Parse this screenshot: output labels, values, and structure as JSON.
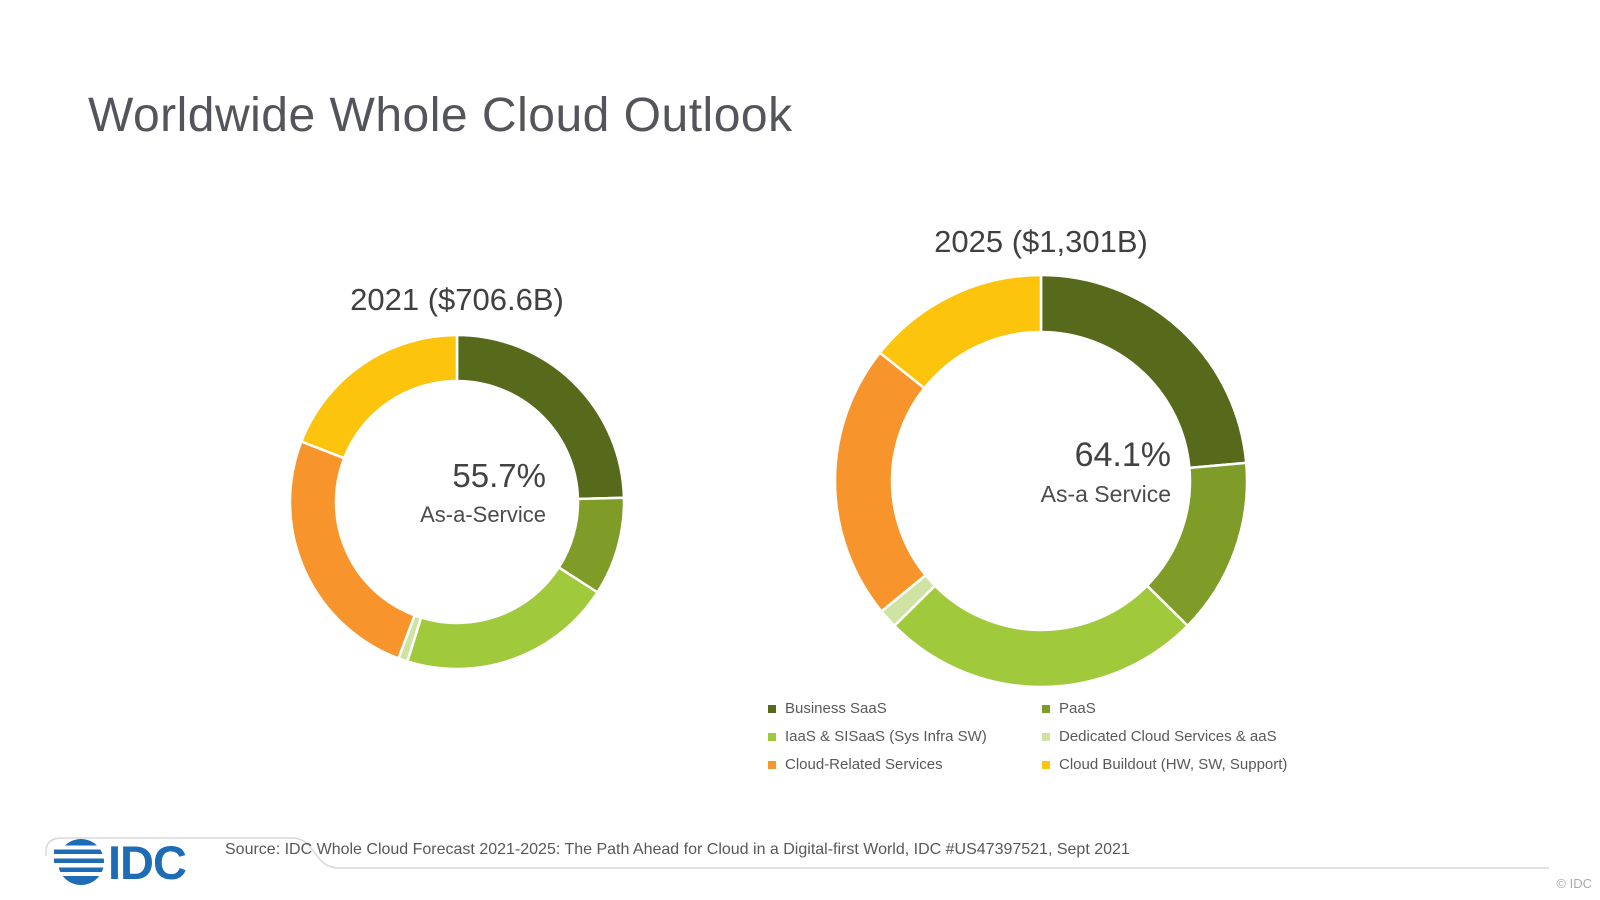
{
  "page": {
    "background": "#ffffff"
  },
  "header": {
    "title": "Worldwide Whole Cloud Outlook"
  },
  "chart_data": [
    {
      "type": "donut",
      "title": "2021 ($706.6B)",
      "total_label": "$706.6B",
      "year": "2021",
      "center": {
        "percent": "55.7%",
        "label": "As-a-Service"
      },
      "categories": [
        "Business SaaS",
        "PaaS",
        "IaaS & SISaaS (Sys Infra SW)",
        "Dedicated Cloud Services & aaS",
        "Cloud-Related Services",
        "Cloud Buildout (HW, SW, Support)"
      ],
      "values": [
        24.6,
        9.5,
        20.7,
        0.9,
        25.2,
        19.1
      ],
      "colors": [
        "#57691b",
        "#7f9b28",
        "#a1c93c",
        "#cfe3a3",
        "#f7952c",
        "#fdc40d"
      ],
      "start_angle": 0,
      "legend_position": "none"
    },
    {
      "type": "donut",
      "title": "2025 ($1,301B)",
      "total_label": "$1,301B",
      "year": "2025",
      "center": {
        "percent": "64.1%",
        "label": "As-a Service"
      },
      "categories": [
        "Business SaaS",
        "PaaS",
        "IaaS & SISaaS (Sys Infra SW)",
        "Dedicated Cloud Services & aaS",
        "Cloud-Related Services",
        "Cloud Buildout (HW, SW, Support)"
      ],
      "values": [
        23.6,
        13.8,
        25.2,
        1.5,
        21.6,
        14.3
      ],
      "colors": [
        "#57691b",
        "#7f9b28",
        "#a1c93c",
        "#cfe3a3",
        "#f7952c",
        "#fdc40d"
      ],
      "start_angle": 0,
      "legend_position": "below"
    }
  ],
  "legend": {
    "items": [
      {
        "label": "Business SaaS",
        "color": "#57691b"
      },
      {
        "label": "PaaS",
        "color": "#7f9b28"
      },
      {
        "label": "IaaS & SISaaS (Sys Infra SW)",
        "color": "#a1c93c"
      },
      {
        "label": "Dedicated Cloud Services & aaS",
        "color": "#cfe3a3"
      },
      {
        "label": "Cloud-Related Services",
        "color": "#f7952c"
      },
      {
        "label": "Cloud Buildout (HW, SW, Support)",
        "color": "#fdc40d"
      }
    ]
  },
  "footer": {
    "source": "Source: IDC Whole Cloud Forecast 2021-2025: The Path Ahead for Cloud in a Digital-first World, IDC #US47397521, Sept 2021",
    "copyright": "© IDC",
    "logo_text": "IDC",
    "logo_color": "#1e6cb5",
    "rule_color": "#d8d8d8"
  }
}
